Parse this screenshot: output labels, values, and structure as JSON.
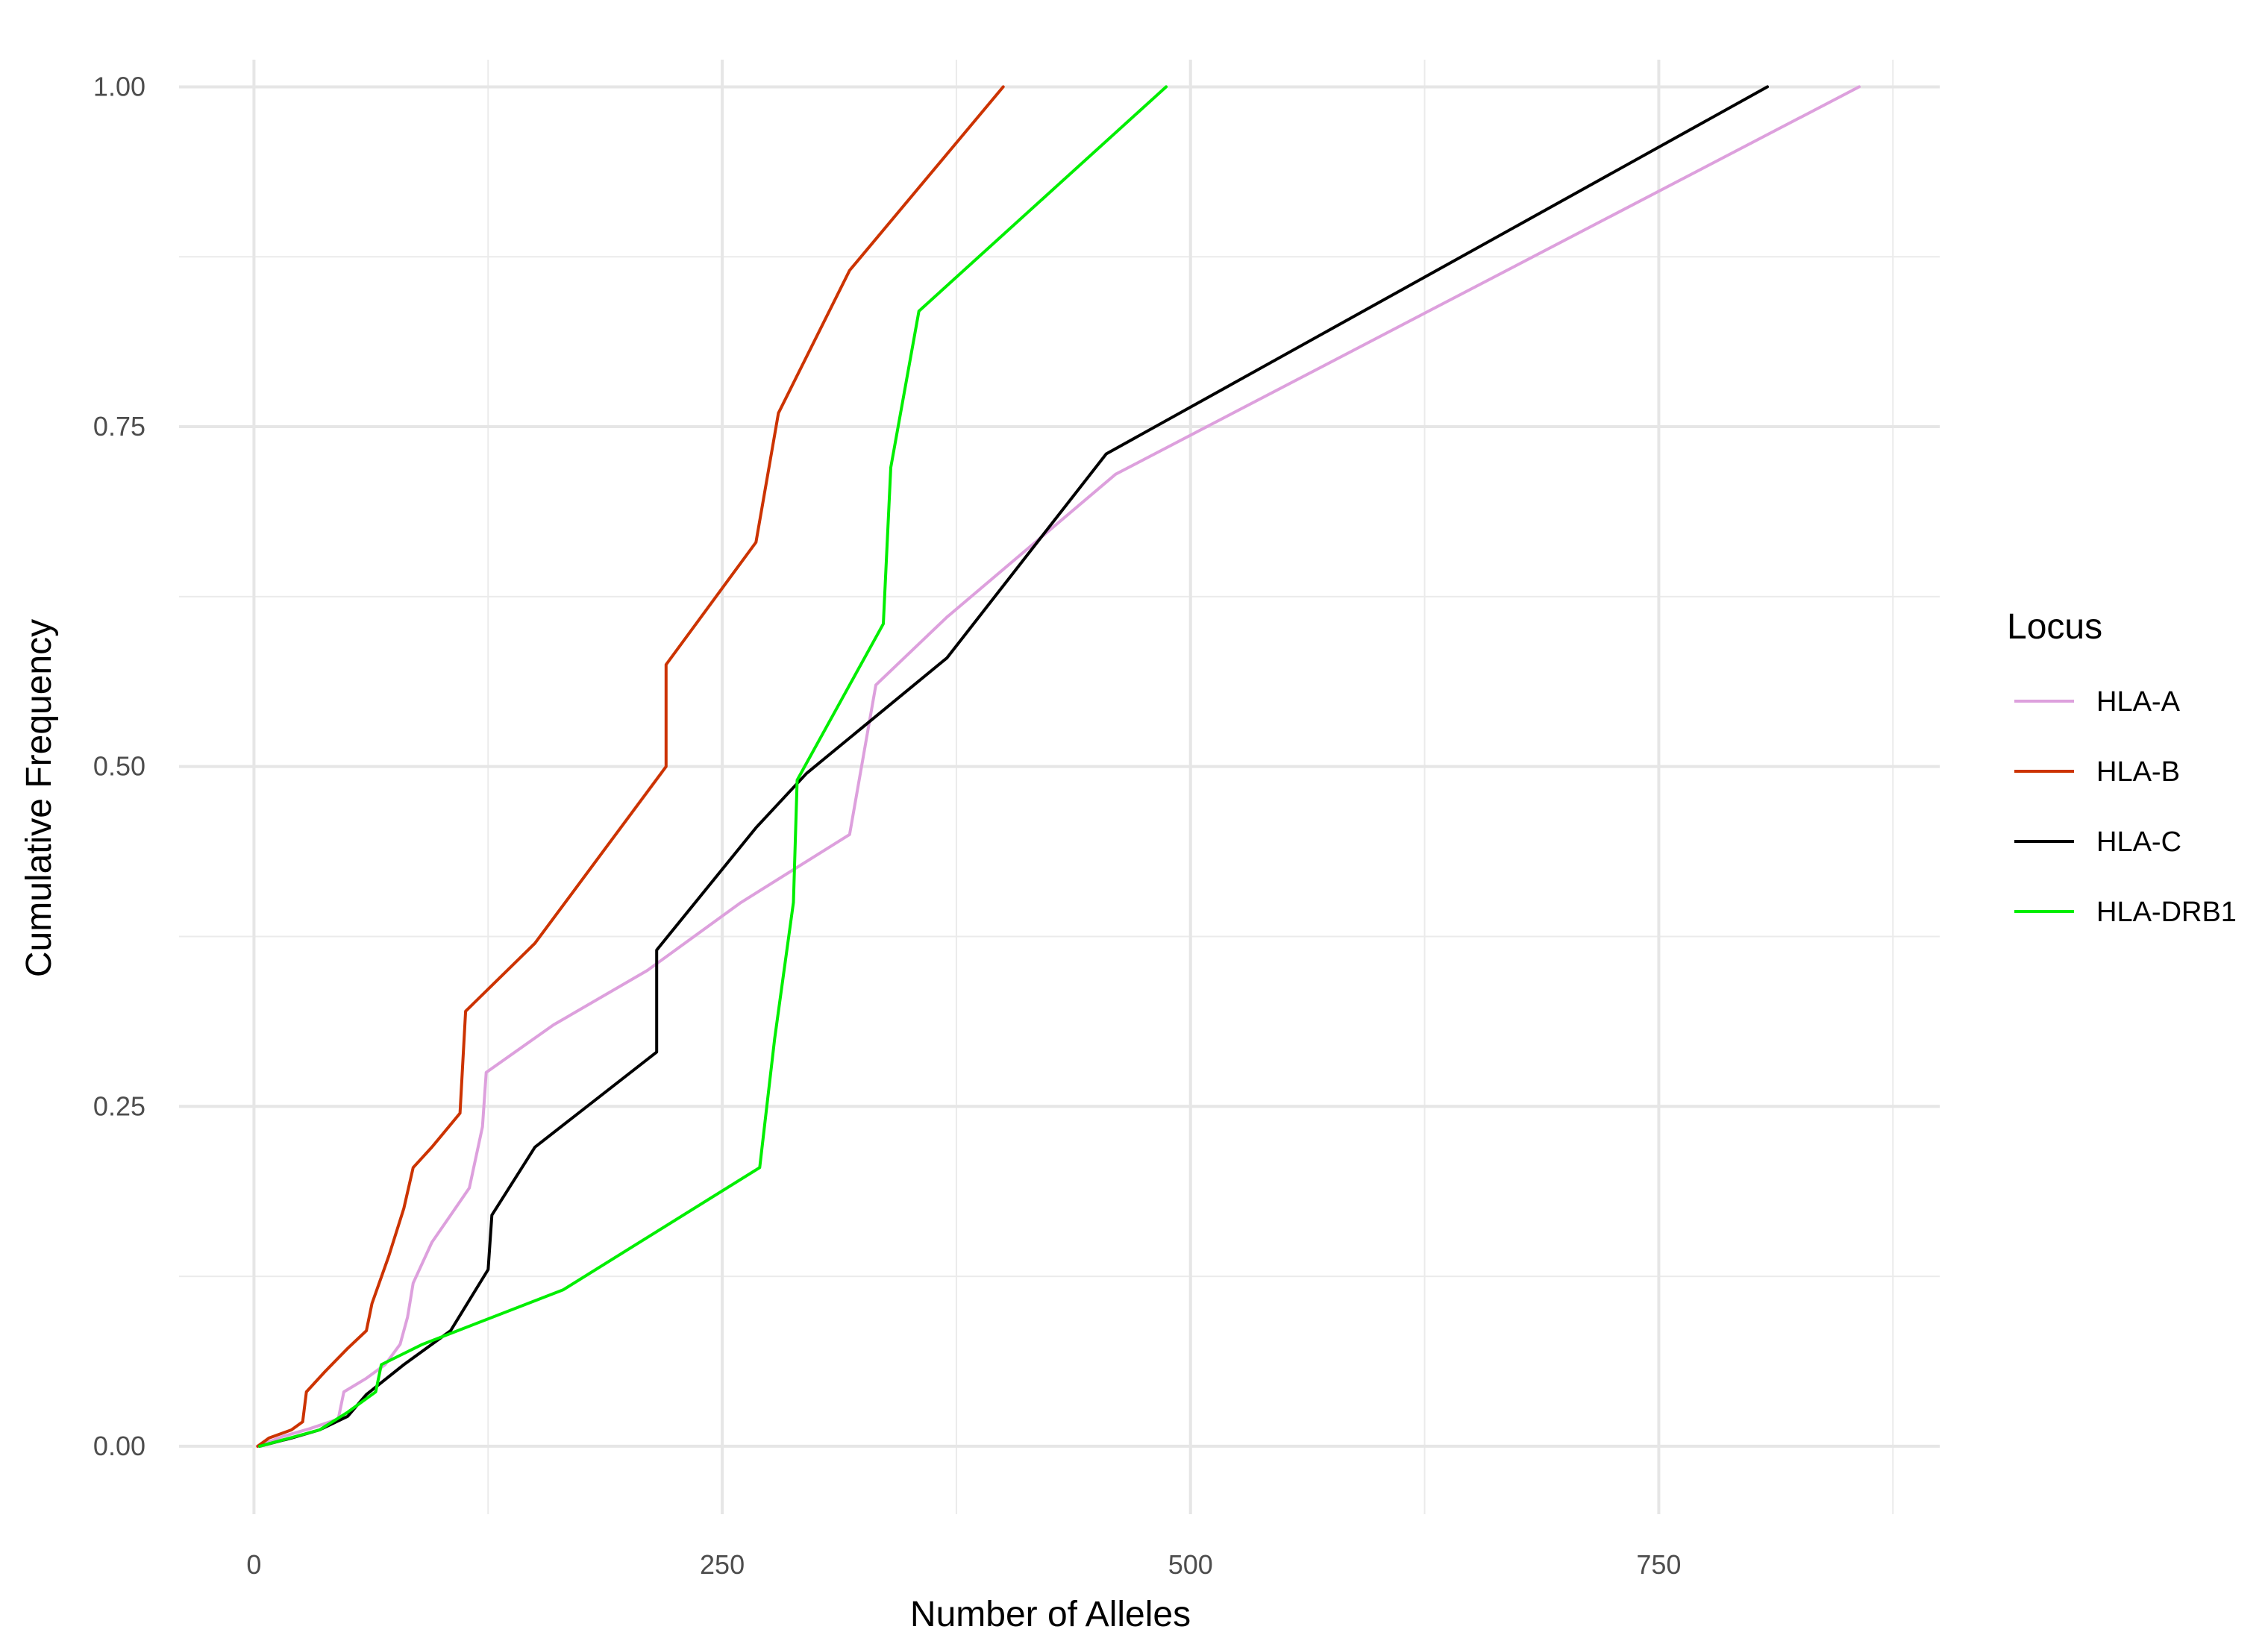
{
  "chart_data": {
    "type": "line",
    "xlabel": "Number of Alleles",
    "ylabel": "Cumulative Frequency",
    "xlim": [
      -40,
      900
    ],
    "ylim": [
      -0.05,
      1.02
    ],
    "x_ticks": [
      0,
      250,
      500,
      750
    ],
    "x_tick_labels": [
      "0",
      "250",
      "500",
      "750"
    ],
    "y_ticks": [
      0,
      0.25,
      0.5,
      0.75,
      1.0
    ],
    "y_tick_labels": [
      "0.00",
      "0.25",
      "0.50",
      "0.75",
      "1.00"
    ],
    "grid": true,
    "legend": {
      "title": "Locus",
      "position": "right"
    },
    "series": [
      {
        "name": "HLA-A",
        "color": "#dda0dd",
        "points": [
          [
            2,
            0
          ],
          [
            15,
            0.007
          ],
          [
            30,
            0.013
          ],
          [
            45,
            0.02
          ],
          [
            48,
            0.04
          ],
          [
            60,
            0.05
          ],
          [
            70,
            0.06
          ],
          [
            78,
            0.075
          ],
          [
            82,
            0.095
          ],
          [
            85,
            0.12
          ],
          [
            95,
            0.15
          ],
          [
            105,
            0.17
          ],
          [
            115,
            0.19
          ],
          [
            122,
            0.235
          ],
          [
            124,
            0.275
          ],
          [
            160,
            0.31
          ],
          [
            210,
            0.35
          ],
          [
            260,
            0.4
          ],
          [
            318,
            0.45
          ],
          [
            332,
            0.56
          ],
          [
            370,
            0.61
          ],
          [
            460,
            0.715
          ],
          [
            857,
            1.0
          ]
        ]
      },
      {
        "name": "HLA-B",
        "color": "#cc3300",
        "points": [
          [
            2,
            0
          ],
          [
            8,
            0.006
          ],
          [
            20,
            0.012
          ],
          [
            26,
            0.018
          ],
          [
            28,
            0.04
          ],
          [
            38,
            0.055
          ],
          [
            50,
            0.072
          ],
          [
            60,
            0.085
          ],
          [
            63,
            0.105
          ],
          [
            72,
            0.14
          ],
          [
            80,
            0.175
          ],
          [
            85,
            0.205
          ],
          [
            95,
            0.22
          ],
          [
            110,
            0.245
          ],
          [
            113,
            0.32
          ],
          [
            150,
            0.37
          ],
          [
            220,
            0.5
          ],
          [
            220,
            0.575
          ],
          [
            268,
            0.665
          ],
          [
            280,
            0.76
          ],
          [
            318,
            0.865
          ],
          [
            400,
            1.0
          ]
        ]
      },
      {
        "name": "HLA-C",
        "color": "#000000",
        "points": [
          [
            3,
            0
          ],
          [
            20,
            0.006
          ],
          [
            35,
            0.012
          ],
          [
            50,
            0.022
          ],
          [
            60,
            0.038
          ],
          [
            80,
            0.06
          ],
          [
            105,
            0.085
          ],
          [
            125,
            0.13
          ],
          [
            127,
            0.17
          ],
          [
            150,
            0.22
          ],
          [
            215,
            0.29
          ],
          [
            215,
            0.365
          ],
          [
            268,
            0.455
          ],
          [
            295,
            0.495
          ],
          [
            370,
            0.58
          ],
          [
            455,
            0.73
          ],
          [
            808,
            1.0
          ]
        ]
      },
      {
        "name": "HLA-DRB1",
        "color": "#00ee00",
        "points": [
          [
            3,
            0
          ],
          [
            35,
            0.012
          ],
          [
            50,
            0.025
          ],
          [
            65,
            0.04
          ],
          [
            68,
            0.06
          ],
          [
            90,
            0.075
          ],
          [
            165,
            0.115
          ],
          [
            270,
            0.205
          ],
          [
            278,
            0.3
          ],
          [
            288,
            0.4
          ],
          [
            290,
            0.49
          ],
          [
            336,
            0.605
          ],
          [
            340,
            0.72
          ],
          [
            355,
            0.835
          ],
          [
            487,
            1.0
          ]
        ]
      }
    ]
  }
}
